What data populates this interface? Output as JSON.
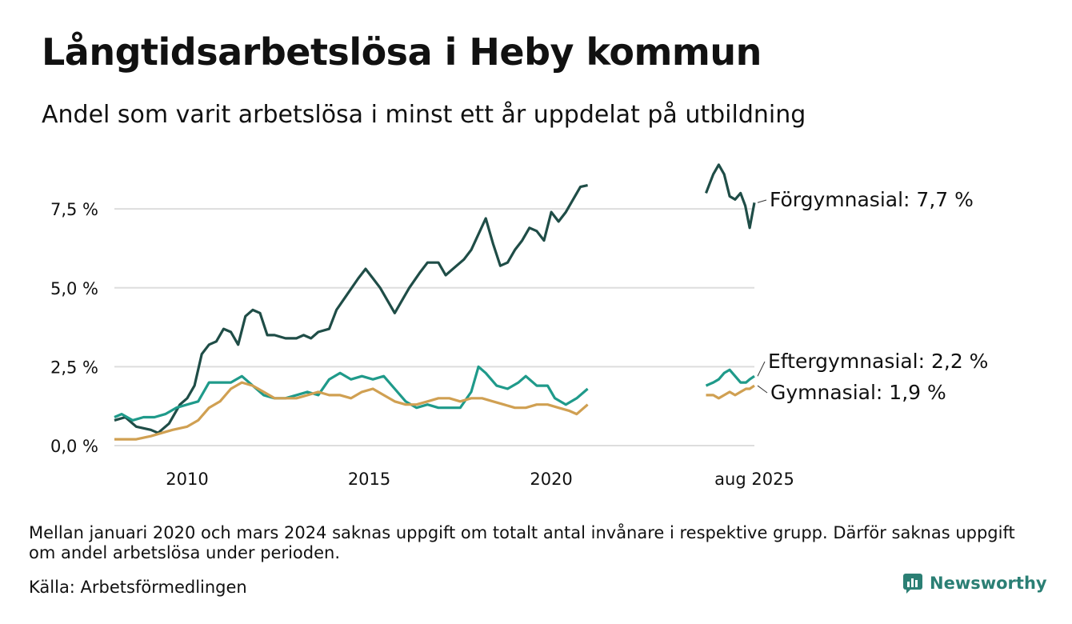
{
  "title": "Långtidsarbetslösa i Heby kommun",
  "subtitle": "Andel som varit arbetslösa i minst ett år uppdelat på utbildning",
  "note": "Mellan januari 2020 och mars 2024 saknas uppgift om totalt antal invånare i respektive grupp. Därför saknas uppgift om andel arbetslösa under perioden.",
  "source": "Källa: Arbetsförmedlingen",
  "brand": "Newsworthy",
  "colors": {
    "forgymnasial": "#1f4d47",
    "eftergymnasial": "#1f9a8a",
    "gymnasial": "#d0a052",
    "grid": "#dddddd",
    "brand": "#2b7f74"
  },
  "chart_data": {
    "type": "line",
    "title": "Långtidsarbetslösa i Heby kommun",
    "subtitle": "Andel som varit arbetslösa i minst ett år uppdelat på utbildning",
    "x_ticks": [
      {
        "label": "2010",
        "year": 2010
      },
      {
        "label": "2015",
        "year": 2015
      },
      {
        "label": "2020",
        "year": 2020
      },
      {
        "label": "aug 2025",
        "year": 2025.58
      }
    ],
    "y_ticks": [
      {
        "label": "0,0 %",
        "value": 0
      },
      {
        "label": "2,5 %",
        "value": 2.5
      },
      {
        "label": "5,0 %",
        "value": 5
      },
      {
        "label": "7,5 %",
        "value": 7.5
      }
    ],
    "ylim": [
      0,
      9
    ],
    "xlim": [
      2008.0,
      2025.58
    ],
    "grid": true,
    "series": [
      {
        "key": "forgymnasial",
        "name": "Förgymnasial",
        "end_label": "Förgymnasial: 7,7 %",
        "color": "#1f4d47",
        "segments": [
          [
            [
              2008.0,
              0.8
            ],
            [
              2008.3,
              0.9
            ],
            [
              2008.6,
              0.6
            ],
            [
              2009.0,
              0.5
            ],
            [
              2009.2,
              0.4
            ],
            [
              2009.5,
              0.7
            ],
            [
              2009.8,
              1.3
            ],
            [
              2010.0,
              1.5
            ],
            [
              2010.2,
              1.9
            ],
            [
              2010.4,
              2.9
            ],
            [
              2010.6,
              3.2
            ],
            [
              2010.8,
              3.3
            ],
            [
              2011.0,
              3.7
            ],
            [
              2011.2,
              3.6
            ],
            [
              2011.4,
              3.2
            ],
            [
              2011.6,
              4.1
            ],
            [
              2011.8,
              4.3
            ],
            [
              2012.0,
              4.2
            ],
            [
              2012.2,
              3.5
            ],
            [
              2012.4,
              3.5
            ],
            [
              2012.7,
              3.4
            ],
            [
              2013.0,
              3.4
            ],
            [
              2013.2,
              3.5
            ],
            [
              2013.4,
              3.4
            ],
            [
              2013.6,
              3.6
            ],
            [
              2013.9,
              3.7
            ],
            [
              2014.1,
              4.3
            ],
            [
              2014.4,
              4.8
            ],
            [
              2014.7,
              5.3
            ],
            [
              2014.9,
              5.6
            ],
            [
              2015.1,
              5.3
            ],
            [
              2015.3,
              5.0
            ],
            [
              2015.5,
              4.6
            ],
            [
              2015.7,
              4.2
            ],
            [
              2015.9,
              4.6
            ],
            [
              2016.1,
              5.0
            ],
            [
              2016.4,
              5.5
            ],
            [
              2016.6,
              5.8
            ],
            [
              2016.9,
              5.8
            ],
            [
              2017.1,
              5.4
            ],
            [
              2017.3,
              5.6
            ],
            [
              2017.6,
              5.9
            ],
            [
              2017.8,
              6.2
            ],
            [
              2018.0,
              6.7
            ],
            [
              2018.2,
              7.2
            ],
            [
              2018.4,
              6.4
            ],
            [
              2018.6,
              5.7
            ],
            [
              2018.8,
              5.8
            ],
            [
              2019.0,
              6.2
            ],
            [
              2019.2,
              6.5
            ],
            [
              2019.4,
              6.9
            ],
            [
              2019.6,
              6.8
            ],
            [
              2019.8,
              6.5
            ],
            [
              2020.0,
              7.4
            ],
            [
              2020.2,
              7.1
            ],
            [
              2020.4,
              7.4
            ],
            [
              2020.6,
              7.8
            ],
            [
              2020.8,
              8.2
            ],
            [
              2021.0,
              8.25
            ]
          ],
          [
            [
              2024.25,
              8.0
            ],
            [
              2024.45,
              8.6
            ],
            [
              2024.6,
              8.9
            ],
            [
              2024.75,
              8.6
            ],
            [
              2024.9,
              7.9
            ],
            [
              2025.05,
              7.8
            ],
            [
              2025.2,
              8.0
            ],
            [
              2025.33,
              7.6
            ],
            [
              2025.45,
              6.9
            ],
            [
              2025.58,
              7.7
            ]
          ]
        ]
      },
      {
        "key": "eftergymnasial",
        "name": "Eftergymnasial",
        "end_label": "Eftergymnasial: 2,2 %",
        "color": "#1f9a8a",
        "segments": [
          [
            [
              2008.0,
              0.9
            ],
            [
              2008.2,
              1.0
            ],
            [
              2008.5,
              0.8
            ],
            [
              2008.8,
              0.9
            ],
            [
              2009.1,
              0.9
            ],
            [
              2009.4,
              1.0
            ],
            [
              2009.7,
              1.2
            ],
            [
              2010.0,
              1.3
            ],
            [
              2010.3,
              1.4
            ],
            [
              2010.6,
              2.0
            ],
            [
              2010.9,
              2.0
            ],
            [
              2011.2,
              2.0
            ],
            [
              2011.5,
              2.2
            ],
            [
              2011.8,
              1.9
            ],
            [
              2012.1,
              1.6
            ],
            [
              2012.4,
              1.5
            ],
            [
              2012.7,
              1.5
            ],
            [
              2013.0,
              1.6
            ],
            [
              2013.3,
              1.7
            ],
            [
              2013.6,
              1.6
            ],
            [
              2013.9,
              2.1
            ],
            [
              2014.2,
              2.3
            ],
            [
              2014.5,
              2.1
            ],
            [
              2014.8,
              2.2
            ],
            [
              2015.1,
              2.1
            ],
            [
              2015.4,
              2.2
            ],
            [
              2015.7,
              1.8
            ],
            [
              2016.0,
              1.4
            ],
            [
              2016.3,
              1.2
            ],
            [
              2016.6,
              1.3
            ],
            [
              2016.9,
              1.2
            ],
            [
              2017.2,
              1.2
            ],
            [
              2017.5,
              1.2
            ],
            [
              2017.8,
              1.7
            ],
            [
              2018.0,
              2.5
            ],
            [
              2018.2,
              2.3
            ],
            [
              2018.5,
              1.9
            ],
            [
              2018.8,
              1.8
            ],
            [
              2019.1,
              2.0
            ],
            [
              2019.3,
              2.2
            ],
            [
              2019.6,
              1.9
            ],
            [
              2019.9,
              1.9
            ],
            [
              2020.1,
              1.5
            ],
            [
              2020.4,
              1.3
            ],
            [
              2020.7,
              1.5
            ],
            [
              2021.0,
              1.8
            ]
          ],
          [
            [
              2024.25,
              1.9
            ],
            [
              2024.45,
              2.0
            ],
            [
              2024.6,
              2.1
            ],
            [
              2024.75,
              2.3
            ],
            [
              2024.9,
              2.4
            ],
            [
              2025.05,
              2.2
            ],
            [
              2025.2,
              2.0
            ],
            [
              2025.35,
              2.0
            ],
            [
              2025.45,
              2.1
            ],
            [
              2025.58,
              2.2
            ]
          ]
        ]
      },
      {
        "key": "gymnasial",
        "name": "Gymnasial",
        "end_label": "Gymnasial: 1,9 %",
        "color": "#d0a052",
        "segments": [
          [
            [
              2008.0,
              0.2
            ],
            [
              2008.3,
              0.2
            ],
            [
              2008.6,
              0.2
            ],
            [
              2009.0,
              0.3
            ],
            [
              2009.3,
              0.4
            ],
            [
              2009.6,
              0.5
            ],
            [
              2010.0,
              0.6
            ],
            [
              2010.3,
              0.8
            ],
            [
              2010.6,
              1.2
            ],
            [
              2010.9,
              1.4
            ],
            [
              2011.2,
              1.8
            ],
            [
              2011.5,
              2.0
            ],
            [
              2011.8,
              1.9
            ],
            [
              2012.1,
              1.7
            ],
            [
              2012.4,
              1.5
            ],
            [
              2012.7,
              1.5
            ],
            [
              2013.0,
              1.5
            ],
            [
              2013.3,
              1.6
            ],
            [
              2013.6,
              1.7
            ],
            [
              2013.9,
              1.6
            ],
            [
              2014.2,
              1.6
            ],
            [
              2014.5,
              1.5
            ],
            [
              2014.8,
              1.7
            ],
            [
              2015.1,
              1.8
            ],
            [
              2015.4,
              1.6
            ],
            [
              2015.7,
              1.4
            ],
            [
              2016.0,
              1.3
            ],
            [
              2016.3,
              1.3
            ],
            [
              2016.6,
              1.4
            ],
            [
              2016.9,
              1.5
            ],
            [
              2017.2,
              1.5
            ],
            [
              2017.5,
              1.4
            ],
            [
              2017.8,
              1.5
            ],
            [
              2018.1,
              1.5
            ],
            [
              2018.4,
              1.4
            ],
            [
              2018.7,
              1.3
            ],
            [
              2019.0,
              1.2
            ],
            [
              2019.3,
              1.2
            ],
            [
              2019.6,
              1.3
            ],
            [
              2019.9,
              1.3
            ],
            [
              2020.2,
              1.2
            ],
            [
              2020.5,
              1.1
            ],
            [
              2020.7,
              1.0
            ],
            [
              2021.0,
              1.3
            ]
          ],
          [
            [
              2024.25,
              1.6
            ],
            [
              2024.45,
              1.6
            ],
            [
              2024.6,
              1.5
            ],
            [
              2024.75,
              1.6
            ],
            [
              2024.9,
              1.7
            ],
            [
              2025.05,
              1.6
            ],
            [
              2025.2,
              1.7
            ],
            [
              2025.35,
              1.8
            ],
            [
              2025.45,
              1.8
            ],
            [
              2025.58,
              1.9
            ]
          ]
        ]
      }
    ]
  }
}
